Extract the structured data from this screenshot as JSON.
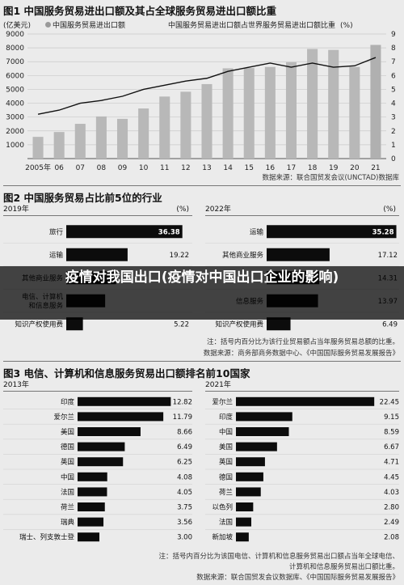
{
  "charts": {
    "fig1": {
      "title": "图1 中国服务贸易进出口额及其占全球服务贸易进出口额比重",
      "y_unit": "(亿美元)",
      "legend_bar": "中国服务贸易进出口额",
      "legend_line": "中国服务贸易进出口额占世界服务贸易进出口额比重",
      "y2_unit": "(%)",
      "source": "数据来源：联合国贸发会议(UNCTAD)数据库"
    },
    "fig2": {
      "title": "图2 中国服务贸易占比前5位的行业",
      "note1": "注：括号内百分比为该行业贸易额占当年服务贸易总额的比重。",
      "note2": "数据来源：商务部商务数据中心、《中国国际服务贸易发展报告》"
    },
    "fig3": {
      "title": "图3 电信、计算机和信息服务贸易出口额排名前10国家",
      "note1": "注：括号内百分比为该国电信、计算机和信息服务贸易出口额占当年全球电信、",
      "note2": "计算机和信息服务贸易出口额比重。",
      "note3": "数据来源：联合国贸发会议数据库、《中国国际服务贸易发展报告》"
    }
  },
  "overlay": {
    "text": "疫情对我国出口(疫情对中国出口企业的影响)"
  },
  "chart_data": [
    {
      "type": "bar",
      "categories": [
        "2005年",
        "06",
        "07",
        "08",
        "09",
        "10",
        "11",
        "12",
        "13",
        "14",
        "15",
        "16",
        "17",
        "18",
        "19",
        "20",
        "21"
      ],
      "series": [
        {
          "name": "中国服务贸易进出口额",
          "values": [
            1570,
            1920,
            2510,
            3045,
            2870,
            3620,
            4480,
            4830,
            5380,
            6520,
            6540,
            6620,
            6960,
            7920,
            7850,
            6620,
            8210
          ]
        },
        {
          "name": "中国服务贸易进出口额占世界服务贸易进出口额比重",
          "type": "line",
          "values": [
            3.2,
            3.5,
            4.0,
            4.2,
            4.5,
            5.0,
            5.3,
            5.6,
            5.8,
            6.3,
            6.6,
            6.9,
            6.6,
            6.9,
            6.6,
            6.7,
            7.3
          ]
        }
      ],
      "y_ticks": [
        1000,
        2000,
        3000,
        4000,
        5000,
        6000,
        7000,
        8000,
        9000
      ],
      "y2_ticks": [
        0,
        1,
        2,
        3,
        4,
        5,
        6,
        7,
        8,
        9
      ],
      "ylim": [
        0,
        9000
      ],
      "y2lim": [
        0,
        9
      ]
    },
    {
      "type": "bar",
      "year": "2019年",
      "unit": "(%)",
      "categories": [
        "旅行",
        "运输",
        "其他商业服务",
        "电信、计算机和信息服务",
        "知识产权使用费"
      ],
      "labels": [
        "旅行",
        "运输",
        "其他商业服务",
        "电信、计算机\n和信息服务",
        "知识产权使用费"
      ],
      "values": [
        36.38,
        19.22,
        15.62,
        12.18,
        5.22
      ],
      "value_labels": [
        "36.38",
        "19.22",
        "",
        "",
        "5.22"
      ],
      "xlim": [
        0,
        40
      ]
    },
    {
      "type": "bar",
      "year": "2022年",
      "unit": "(%)",
      "categories": [
        "运输",
        "其他商业服务",
        "知识产权使用费",
        "电信、计算机和信息服务",
        "知识产权使用费"
      ],
      "labels": [
        "运输",
        "其他商业服务",
        "",
        "信息服务",
        "知识产权使用费"
      ],
      "values": [
        35.28,
        17.12,
        14.31,
        13.97,
        6.49
      ],
      "value_labels": [
        "35.28",
        "17.12",
        "14.31",
        "13.97",
        "6.49"
      ],
      "xlim": [
        0,
        40
      ]
    },
    {
      "type": "bar",
      "year": "2013年",
      "unit": "",
      "categories": [
        "印度",
        "爱尔兰",
        "美国",
        "德国",
        "英国",
        "中国",
        "法国",
        "荷兰",
        "瑞典",
        "瑞士、列支敦士登"
      ],
      "values": [
        12.82,
        11.79,
        8.66,
        6.49,
        6.25,
        4.08,
        4.05,
        3.75,
        3.56,
        3.0
      ],
      "value_labels": [
        "12.82",
        "11.79",
        "8.66",
        "6.49",
        "6.25",
        "4.08",
        "4.05",
        "3.75",
        "3.56",
        "3.00"
      ],
      "xlim": [
        0,
        15
      ]
    },
    {
      "type": "bar",
      "year": "2021年",
      "unit": "",
      "categories": [
        "爱尔兰",
        "印度",
        "中国",
        "美国",
        "英国",
        "德国",
        "荷兰",
        "以色列",
        "法国",
        "新加坡"
      ],
      "values": [
        22.45,
        9.15,
        8.59,
        6.67,
        4.71,
        4.45,
        4.03,
        2.8,
        2.49,
        2.08
      ],
      "value_labels": [
        "22.45",
        "9.15",
        "8.59",
        "6.67",
        "4.71",
        "4.45",
        "4.03",
        "2.80",
        "2.49",
        "2.08"
      ],
      "xlim": [
        0,
        24
      ]
    }
  ]
}
